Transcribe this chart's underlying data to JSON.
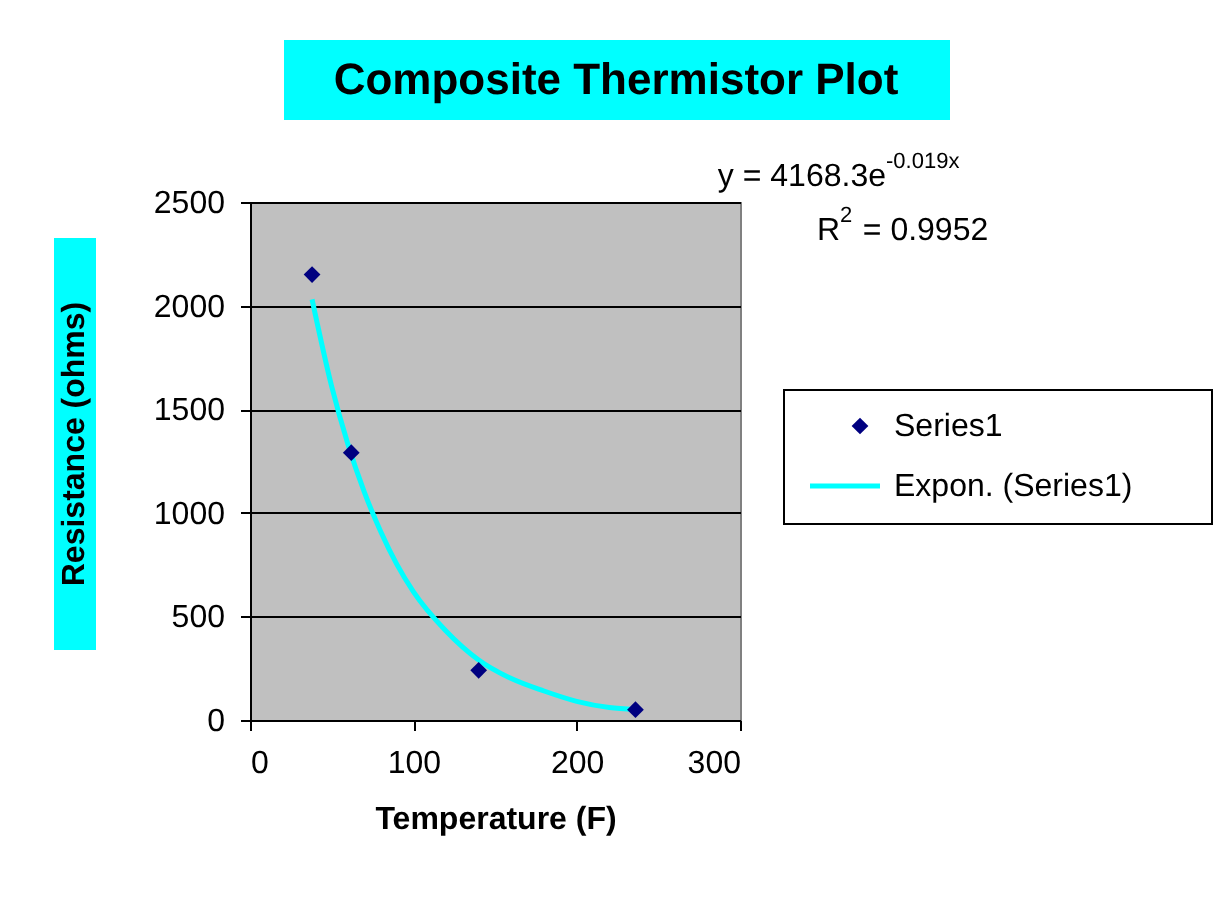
{
  "chart_data": {
    "type": "scatter",
    "title": "Composite Thermistor Plot",
    "xlabel": "Temperature (F)",
    "ylabel": "Resistance (ohms)",
    "series": [
      {
        "name": "Series1",
        "color": "#000080",
        "marker": "diamond",
        "x": [
          38,
          62,
          140,
          236
        ],
        "values": [
          2150,
          1290,
          240,
          50
        ]
      },
      {
        "name": "Expon. (Series1)",
        "type": "line",
        "color": "#00ffff",
        "marker": "none",
        "line_style": "solid",
        "x": [
          38,
          50,
          60,
          70,
          80,
          90,
          100,
          120,
          140,
          160,
          180,
          200,
          220,
          236
        ],
        "values": [
          2030,
          1610,
          1330,
          1100,
          910,
          750,
          620,
          430,
          290,
          200,
          140,
          90,
          60,
          50
        ]
      }
    ],
    "annotations": [
      "y = 4168.3e$^{-0.019x}$",
      "R$^{2}$ = 0.9952"
    ],
    "xlim": [
      0,
      300
    ],
    "xticks": [
      0,
      100,
      200,
      300
    ],
    "ylim": [
      0,
      2500
    ],
    "yticks": [
      0,
      500,
      1000,
      1500,
      2000,
      2500
    ],
    "grid": "y",
    "legend": "right"
  }
}
